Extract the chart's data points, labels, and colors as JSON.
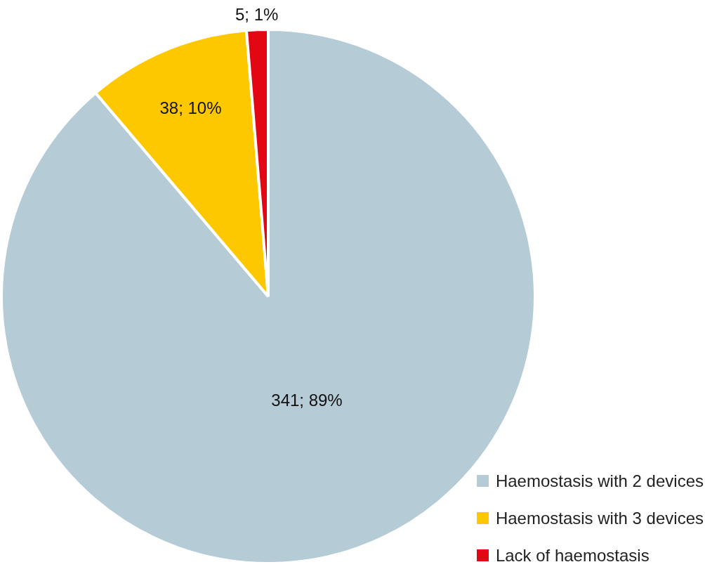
{
  "chart_data": {
    "type": "pie",
    "categories": [
      "Haemostasis with 2 devices",
      "Haemostasis with 3 devices",
      "Lack of haemostasis"
    ],
    "values": [
      341,
      38,
      5
    ],
    "colors": [
      "#b5cbd6",
      "#fec800",
      "#e30613"
    ],
    "value_labels": [
      "341; 89%",
      "38; 10%",
      "5; 1%"
    ],
    "legend": "bottom right"
  }
}
